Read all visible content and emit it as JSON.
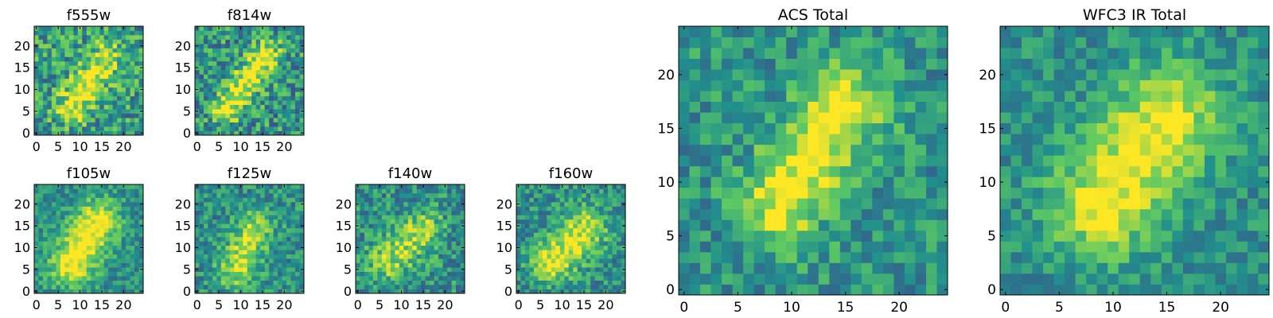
{
  "figure": {
    "colormap": "viridis",
    "colormap_stops": [
      "#440154",
      "#3b528b",
      "#21908c",
      "#5dc863",
      "#fde725"
    ]
  },
  "chart_data": [
    {
      "type": "heatmap",
      "title": "f555w",
      "size": 25,
      "xticks": [
        0,
        5,
        10,
        15,
        20
      ],
      "yticks": [
        0,
        5,
        10,
        15,
        20
      ],
      "seed": 11,
      "feature": {
        "x0": 8,
        "y0": 6,
        "x1": 16,
        "y1": 17,
        "width": 2.6,
        "amp": 0.45
      },
      "noise": 0.55,
      "base": 0.55
    },
    {
      "type": "heatmap",
      "title": "f814w",
      "size": 25,
      "xticks": [
        0,
        5,
        10,
        15,
        20
      ],
      "yticks": [
        0,
        5,
        10,
        15,
        20
      ],
      "seed": 23,
      "feature": {
        "x0": 7,
        "y0": 6,
        "x1": 16,
        "y1": 18,
        "width": 2.4,
        "amp": 0.5
      },
      "noise": 0.55,
      "base": 0.52
    },
    {
      "type": "heatmap",
      "title": "f105w",
      "size": 25,
      "xticks": [
        0,
        5,
        10,
        15,
        20
      ],
      "yticks": [
        0,
        5,
        10,
        15,
        20
      ],
      "seed": 37,
      "feature": {
        "x0": 8,
        "y0": 6,
        "x1": 14,
        "y1": 16,
        "width": 3.5,
        "amp": 0.55
      },
      "noise": 0.35,
      "base": 0.5
    },
    {
      "type": "heatmap",
      "title": "f125w",
      "size": 25,
      "xticks": [
        0,
        5,
        10,
        15,
        20
      ],
      "yticks": [
        0,
        5,
        10,
        15,
        20
      ],
      "seed": 41,
      "feature": {
        "x0": 9,
        "y0": 5,
        "x1": 13,
        "y1": 14,
        "width": 3.0,
        "amp": 0.4
      },
      "noise": 0.4,
      "base": 0.5
    },
    {
      "type": "heatmap",
      "title": "f140w",
      "size": 25,
      "xticks": [
        0,
        5,
        10,
        15,
        20
      ],
      "yticks": [
        0,
        5,
        10,
        15,
        20
      ],
      "seed": 53,
      "feature": {
        "x0": 7,
        "y0": 7,
        "x1": 15,
        "y1": 14,
        "width": 3.4,
        "amp": 0.35
      },
      "noise": 0.45,
      "base": 0.5
    },
    {
      "type": "heatmap",
      "title": "f160w",
      "size": 25,
      "xticks": [
        0,
        5,
        10,
        15,
        20
      ],
      "yticks": [
        0,
        5,
        10,
        15,
        20
      ],
      "seed": 67,
      "feature": {
        "x0": 8,
        "y0": 7,
        "x1": 15,
        "y1": 14,
        "width": 3.6,
        "amp": 0.45
      },
      "noise": 0.4,
      "base": 0.5
    },
    {
      "type": "heatmap",
      "title": "ACS Total",
      "size": 25,
      "xticks": [
        0,
        5,
        10,
        15,
        20
      ],
      "yticks": [
        0,
        5,
        10,
        15,
        20
      ],
      "seed": 79,
      "feature": {
        "x0": 9,
        "y0": 8,
        "x1": 15,
        "y1": 17,
        "width": 2.6,
        "amp": 0.5
      },
      "noise": 0.38,
      "base": 0.52
    },
    {
      "type": "heatmap",
      "title": "WFC3 IR Total",
      "size": 25,
      "xticks": [
        0,
        5,
        10,
        15,
        20
      ],
      "yticks": [
        0,
        5,
        10,
        15,
        20
      ],
      "seed": 97,
      "feature": {
        "x0": 9,
        "y0": 8,
        "x1": 15,
        "y1": 16,
        "width": 3.4,
        "amp": 0.5
      },
      "noise": 0.3,
      "base": 0.5
    }
  ]
}
